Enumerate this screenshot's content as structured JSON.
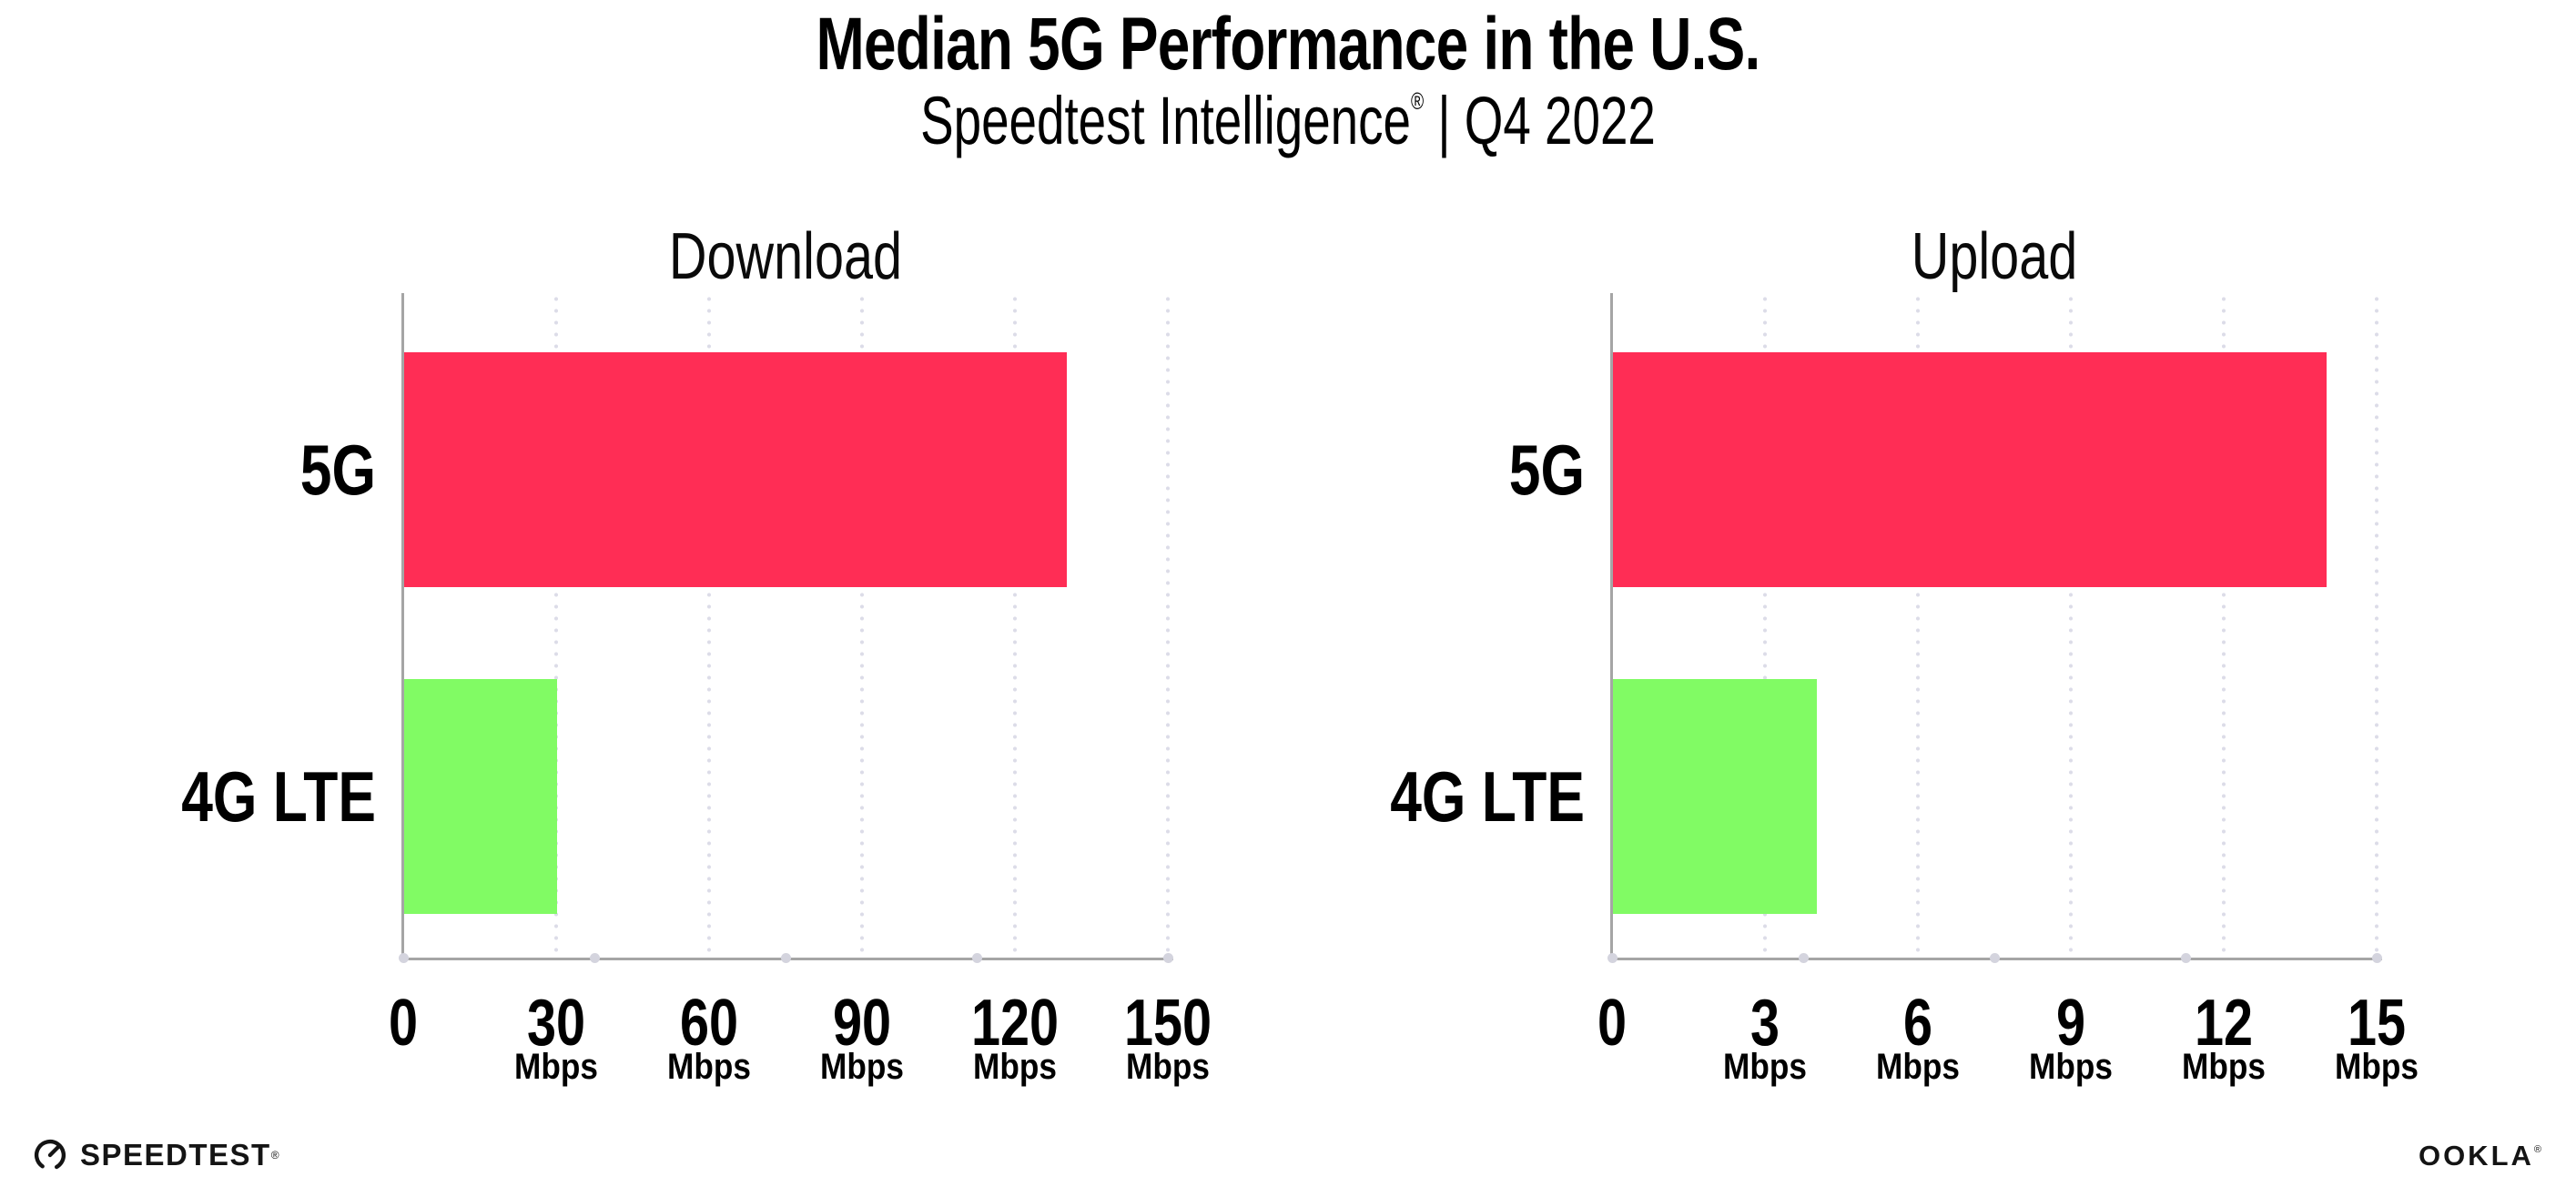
{
  "header": {
    "title": "Median 5G Performance in the U.S.",
    "subtitle_brand": "Speedtest Intelligence",
    "subtitle_reg": "®",
    "subtitle_rest": " | Q4 2022"
  },
  "chart_data": [
    {
      "type": "bar",
      "orientation": "horizontal",
      "title": "Download",
      "categories": [
        "5G",
        "4G LTE"
      ],
      "values": [
        130,
        30
      ],
      "unit": "Mbps",
      "xticks": [
        0,
        30,
        60,
        90,
        120,
        150
      ],
      "xlim": [
        0,
        150
      ],
      "grid": "dotted-vertical",
      "legend": "none",
      "bar_colors": [
        "#FF2D55",
        "#81FB64"
      ]
    },
    {
      "type": "bar",
      "orientation": "horizontal",
      "title": "Upload",
      "categories": [
        "5G",
        "4G LTE"
      ],
      "values": [
        14,
        4
      ],
      "unit": "Mbps",
      "xticks": [
        0,
        3,
        6,
        9,
        12,
        15
      ],
      "xlim": [
        0,
        15
      ],
      "grid": "dotted-vertical",
      "legend": "none",
      "bar_colors": [
        "#FF2D55",
        "#81FB64"
      ]
    }
  ],
  "footer": {
    "speedtest_label": "SPEEDTEST",
    "speedtest_mark": "®",
    "ookla_label": "OOKLA",
    "ookla_mark": "®"
  }
}
